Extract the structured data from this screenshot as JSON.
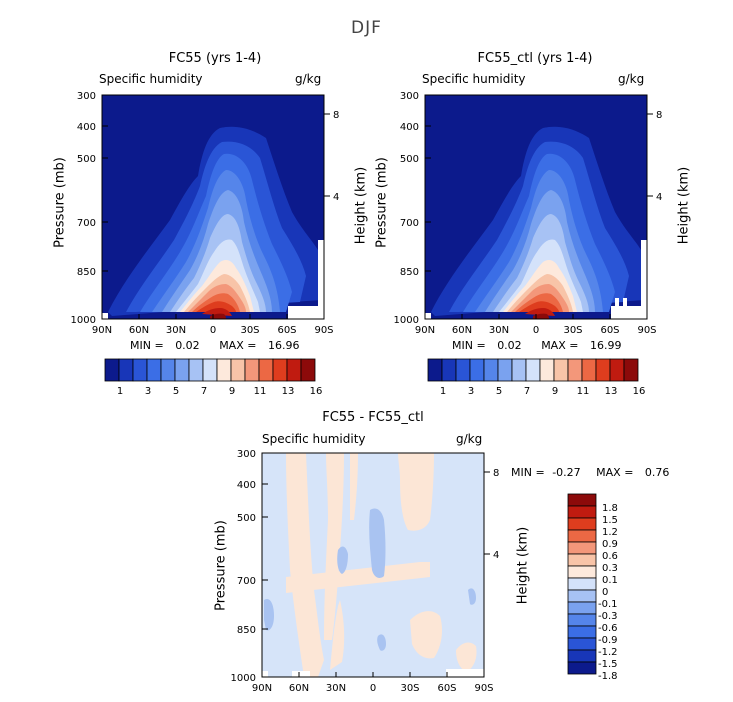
{
  "figure_title": "DJF",
  "chart_data": [
    {
      "type": "heatmap",
      "title": "FC55 (yrs 1-4)",
      "subtitle_left": "Specific humidity",
      "subtitle_right": "g/kg",
      "ylabel": "Pressure (mb)",
      "ylabel_right": "Height (km)",
      "x_ticks": [
        "90N",
        "60N",
        "30N",
        "0",
        "30S",
        "60S",
        "90S"
      ],
      "y_ticks": [
        "300",
        "400",
        "500",
        "700",
        "850",
        "1000"
      ],
      "y_ticks_right": [
        "8",
        "4"
      ],
      "ylim": [
        300,
        1000
      ],
      "stats": {
        "min_label": "MIN =",
        "min": "0.02",
        "max_label": "MAX =",
        "max": "16.96"
      },
      "colorbar": {
        "labels": [
          "1",
          "3",
          "5",
          "7",
          "9",
          "11",
          "13",
          "16"
        ]
      }
    },
    {
      "type": "heatmap",
      "title": "FC55_ctl (yrs 1-4)",
      "subtitle_left": "Specific humidity",
      "subtitle_right": "g/kg",
      "ylabel": "Pressure (mb)",
      "ylabel_right": "Height (km)",
      "x_ticks": [
        "90N",
        "60N",
        "30N",
        "0",
        "30S",
        "60S",
        "90S"
      ],
      "y_ticks": [
        "300",
        "400",
        "500",
        "700",
        "850",
        "1000"
      ],
      "y_ticks_right": [
        "8",
        "4"
      ],
      "ylim": [
        300,
        1000
      ],
      "stats": {
        "min_label": "MIN =",
        "min": "0.02",
        "max_label": "MAX =",
        "max": "16.99"
      },
      "colorbar": {
        "labels": [
          "1",
          "3",
          "5",
          "7",
          "9",
          "11",
          "13",
          "16"
        ]
      }
    },
    {
      "type": "heatmap",
      "title": "FC55 - FC55_ctl",
      "subtitle_left": "Specific humidity",
      "subtitle_right": "g/kg",
      "ylabel": "Pressure (mb)",
      "ylabel_right": "Height (km)",
      "x_ticks": [
        "90N",
        "60N",
        "30N",
        "0",
        "30S",
        "60S",
        "90S"
      ],
      "y_ticks": [
        "300",
        "400",
        "500",
        "700",
        "850",
        "1000"
      ],
      "y_ticks_right": [
        "8",
        "4"
      ],
      "ylim": [
        300,
        1000
      ],
      "stats": {
        "min_label": "MIN =",
        "min": "-0.27",
        "max_label": "MAX =",
        "max": "0.76"
      },
      "colorbar": {
        "labels": [
          "1.8",
          "1.5",
          "1.2",
          "0.9",
          "0.6",
          "0.3",
          "0.1",
          "0",
          "-0.1",
          "-0.3",
          "-0.6",
          "-0.9",
          "-1.2",
          "-1.5",
          "-1.8"
        ]
      }
    }
  ],
  "colors": {
    "abs_scale": [
      "#0c1a8c",
      "#1836b8",
      "#2a55d6",
      "#3b6ee6",
      "#5585ea",
      "#7aa2ef",
      "#a7c2f4",
      "#d4e2fa",
      "#fde9dc",
      "#f8c4a8",
      "#f3977a",
      "#ec6844",
      "#de3d1e",
      "#c01b10",
      "#8c0a0a"
    ],
    "diff_scale": [
      "#8c0a0a",
      "#c01b10",
      "#de3d1e",
      "#ec6844",
      "#f3977a",
      "#f8c4a8",
      "#fde9dc",
      "#d4e2fa",
      "#a7c2f4",
      "#7aa2ef",
      "#5585ea",
      "#3b6ee6",
      "#2a55d6",
      "#1836b8",
      "#0c1a8c"
    ],
    "diff_pos": "#fce6d6",
    "diff_neg": "#d6e4f9",
    "diff_neg2": "#a9c3f1"
  }
}
